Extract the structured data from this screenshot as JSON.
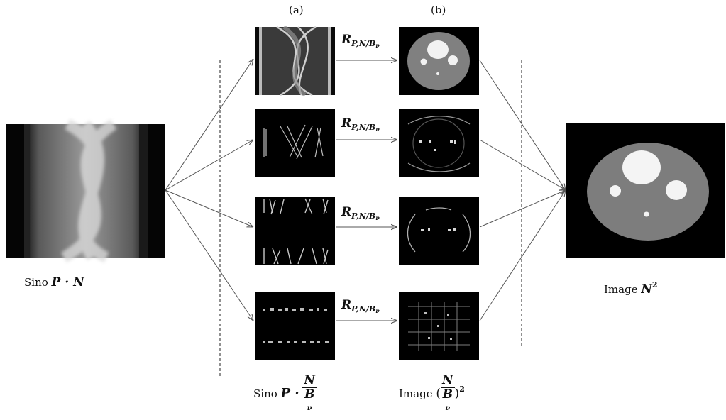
{
  "column_labels": {
    "a": "(a)",
    "b": "(b)"
  },
  "operator": {
    "symbol": "R",
    "subscript": "P,N/B",
    "subscript_nu": "ν"
  },
  "left": {
    "prefix": "Sino",
    "expr": "P · N"
  },
  "middle_a": {
    "prefix": "Sino",
    "expr": "P ·",
    "numerator": "N",
    "denominator": "B",
    "denominator_sub": "ν"
  },
  "middle_b": {
    "prefix": "Image",
    "open": "(",
    "numerator": "N",
    "denominator": "B",
    "denominator_sub": "ν",
    "close": ")",
    "power": "2"
  },
  "right": {
    "prefix": "Image",
    "expr": "N",
    "power": "2"
  },
  "colors": {
    "image_bg": "#000000",
    "phantom_gray": "#7d7d7d",
    "phantom_white": "#f4f4f4",
    "line": "#555555"
  }
}
